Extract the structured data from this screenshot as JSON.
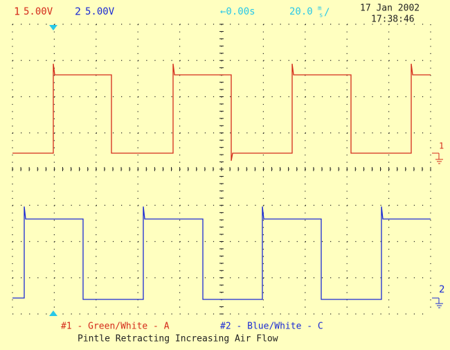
{
  "header": {
    "ch1_number": "1",
    "ch1_scale": "5.00V",
    "ch2_number": "2",
    "ch2_scale": "5.00V",
    "trigger_offset": "←0.00s",
    "timebase": "20.0",
    "timebase_unit_top": "m",
    "timebase_unit_bottom": "s",
    "timebase_slash": "/",
    "date": "17 Jan 2002",
    "time": "17:38:46"
  },
  "markers": {
    "ch1": "1",
    "ch2": "2"
  },
  "footer": {
    "ch1_label": "#1 - Green/White - A",
    "ch2_label": "#2 - Blue/White - C",
    "caption": "Pintle Retracting Increasing Air Flow"
  }
}
